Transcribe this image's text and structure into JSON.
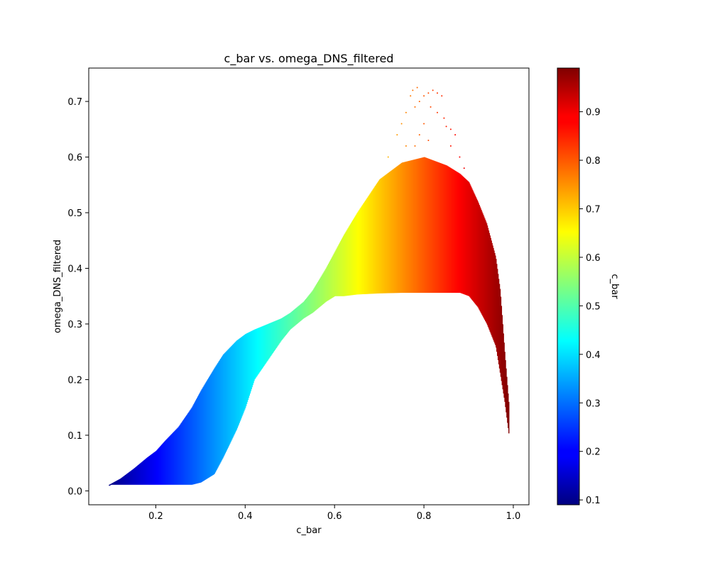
{
  "chart_data": {
    "type": "scatter",
    "title": "c_bar vs. omega_DNS_filtered",
    "xlabel": "c_bar",
    "ylabel": "omega_DNS_filtered",
    "xlim": [
      0.05,
      1.035
    ],
    "ylim": [
      -0.025,
      0.76
    ],
    "xticks": [
      "0.2",
      "0.4",
      "0.6",
      "0.8",
      "1.0"
    ],
    "yticks": [
      "0.0",
      "0.1",
      "0.2",
      "0.3",
      "0.4",
      "0.5",
      "0.6",
      "0.7"
    ],
    "grid": false,
    "colormap": "jet",
    "colorbar": {
      "label": "c_bar",
      "range": [
        0.09,
        0.99
      ],
      "ticks": [
        "0.1",
        "0.2",
        "0.3",
        "0.4",
        "0.5",
        "0.6",
        "0.7",
        "0.8",
        "0.9"
      ]
    },
    "color_by": "c_bar",
    "envelope": {
      "x": [
        0.095,
        0.12,
        0.15,
        0.18,
        0.2,
        0.22,
        0.25,
        0.28,
        0.3,
        0.33,
        0.35,
        0.38,
        0.4,
        0.42,
        0.45,
        0.48,
        0.5,
        0.53,
        0.55,
        0.58,
        0.6,
        0.62,
        0.65,
        0.7,
        0.75,
        0.8,
        0.85,
        0.88,
        0.9,
        0.92,
        0.94,
        0.96,
        0.97,
        0.98,
        0.99
      ],
      "upper": [
        0.011,
        0.022,
        0.04,
        0.06,
        0.072,
        0.09,
        0.115,
        0.15,
        0.18,
        0.22,
        0.245,
        0.27,
        0.282,
        0.29,
        0.3,
        0.31,
        0.32,
        0.34,
        0.36,
        0.4,
        0.43,
        0.46,
        0.5,
        0.56,
        0.59,
        0.6,
        0.585,
        0.57,
        0.555,
        0.52,
        0.48,
        0.42,
        0.36,
        0.25,
        0.15
      ],
      "lower": [
        0.011,
        0.011,
        0.011,
        0.011,
        0.011,
        0.011,
        0.011,
        0.011,
        0.015,
        0.03,
        0.06,
        0.11,
        0.15,
        0.2,
        0.235,
        0.27,
        0.29,
        0.31,
        0.32,
        0.34,
        0.35,
        0.35,
        0.353,
        0.355,
        0.356,
        0.356,
        0.356,
        0.356,
        0.35,
        0.33,
        0.3,
        0.26,
        0.21,
        0.16,
        0.097
      ]
    },
    "sparse_peak": [
      [
        0.72,
        0.6
      ],
      [
        0.74,
        0.64
      ],
      [
        0.75,
        0.66
      ],
      [
        0.76,
        0.68
      ],
      [
        0.77,
        0.71
      ],
      [
        0.775,
        0.72
      ],
      [
        0.78,
        0.69
      ],
      [
        0.785,
        0.725
      ],
      [
        0.79,
        0.7
      ],
      [
        0.8,
        0.71
      ],
      [
        0.81,
        0.715
      ],
      [
        0.815,
        0.69
      ],
      [
        0.82,
        0.72
      ],
      [
        0.83,
        0.715
      ],
      [
        0.84,
        0.71
      ],
      [
        0.83,
        0.68
      ],
      [
        0.845,
        0.67
      ],
      [
        0.85,
        0.655
      ],
      [
        0.86,
        0.65
      ],
      [
        0.87,
        0.64
      ],
      [
        0.88,
        0.6
      ],
      [
        0.89,
        0.58
      ],
      [
        0.86,
        0.62
      ],
      [
        0.8,
        0.66
      ],
      [
        0.79,
        0.64
      ],
      [
        0.81,
        0.63
      ],
      [
        0.78,
        0.62
      ],
      [
        0.76,
        0.62
      ]
    ]
  }
}
